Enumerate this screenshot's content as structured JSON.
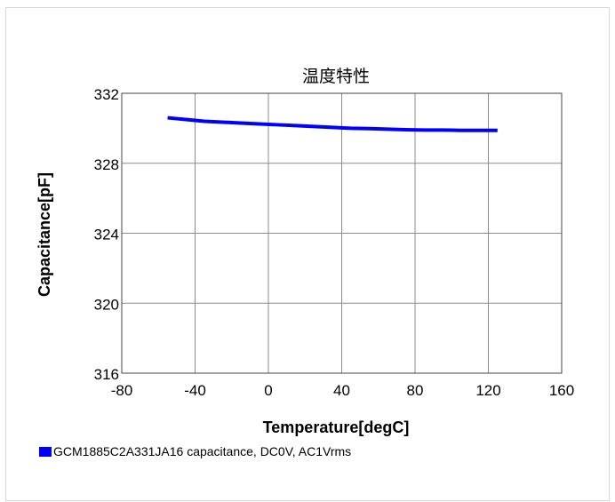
{
  "chart_data": {
    "type": "line",
    "title": "温度特性",
    "xlabel": "Temperature[degC]",
    "ylabel": "Capacitance[pF]",
    "xlim": [
      -80,
      160
    ],
    "ylim": [
      316,
      332
    ],
    "x_ticks": [
      -80,
      -40,
      0,
      40,
      80,
      120,
      160
    ],
    "y_ticks": [
      316,
      320,
      324,
      328,
      332
    ],
    "grid": true,
    "legend_position": "bottom-left",
    "series": [
      {
        "name": "GCM1885C2A331JA16 capacitance, DC0V, AC1Vrms",
        "color": "#0000ff",
        "x": [
          -55,
          -45,
          -35,
          -25,
          -15,
          -5,
          5,
          15,
          25,
          35,
          45,
          55,
          65,
          75,
          85,
          95,
          105,
          115,
          125
        ],
        "y": [
          330.6,
          330.5,
          330.4,
          330.35,
          330.3,
          330.25,
          330.2,
          330.15,
          330.1,
          330.05,
          330.0,
          329.98,
          329.95,
          329.92,
          329.9,
          329.9,
          329.88,
          329.88,
          329.88
        ]
      }
    ]
  }
}
